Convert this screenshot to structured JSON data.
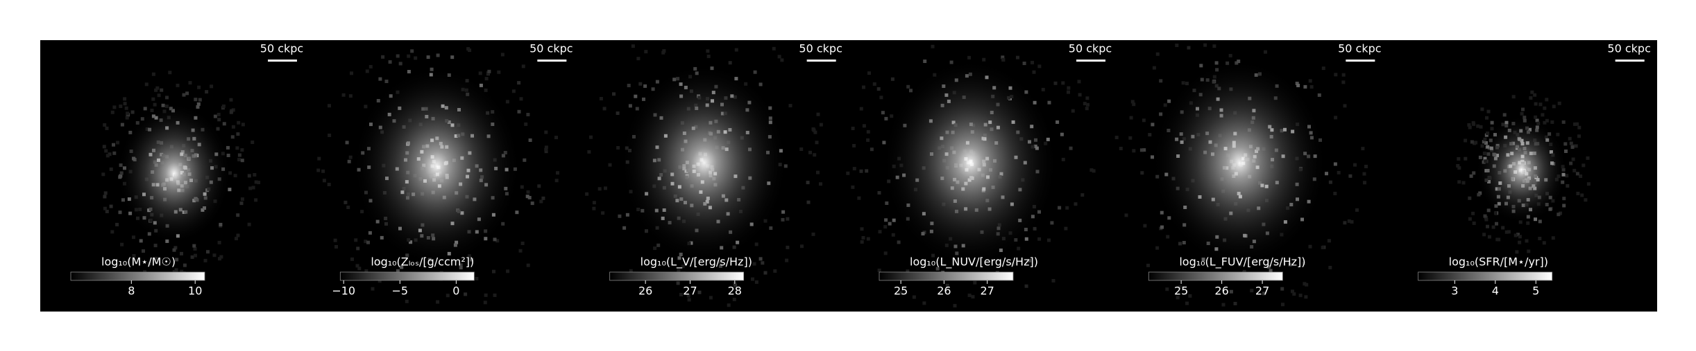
{
  "panels": [
    {
      "scale_bar": "50 ckpc",
      "colorbar": {
        "label": "log₁₀(M⋆/M☉)",
        "lim": [
          6.1,
          10.3
        ],
        "ticks": [
          8,
          10
        ]
      }
    },
    {
      "scale_bar": "50 ckpc",
      "colorbar": {
        "label": "log₁₀(Zₗₒₛ/[g/ccm²])",
        "lim": [
          -10.3,
          1.6
        ],
        "ticks": [
          {
            "value": -10,
            "label": "−10"
          },
          {
            "value": -5,
            "label": "−5"
          },
          0
        ]
      }
    },
    {
      "scale_bar": "50 ckpc",
      "colorbar": {
        "label": "log₁₀(L_V/[erg/s/Hz])",
        "lim": [
          25.2,
          28.2
        ],
        "ticks": [
          26,
          27,
          28
        ]
      }
    },
    {
      "scale_bar": "50 ckpc",
      "colorbar": {
        "label": "log₁₀(L_NUV/[erg/s/Hz])",
        "lim": [
          24.5,
          27.6
        ],
        "ticks": [
          25,
          26,
          27
        ]
      }
    },
    {
      "scale_bar": "50 ckpc",
      "colorbar": {
        "label": "log₁₀(L_FUV/[erg/s/Hz])",
        "lim": [
          24.2,
          27.5
        ],
        "ticks": [
          25,
          26,
          27
        ]
      }
    },
    {
      "scale_bar": "50 ckpc",
      "colorbar": {
        "label": "log₁₀(SFR/[M⋆/yr])",
        "lim": [
          2.1,
          5.4
        ],
        "ticks": [
          3,
          4,
          5
        ]
      }
    }
  ]
}
